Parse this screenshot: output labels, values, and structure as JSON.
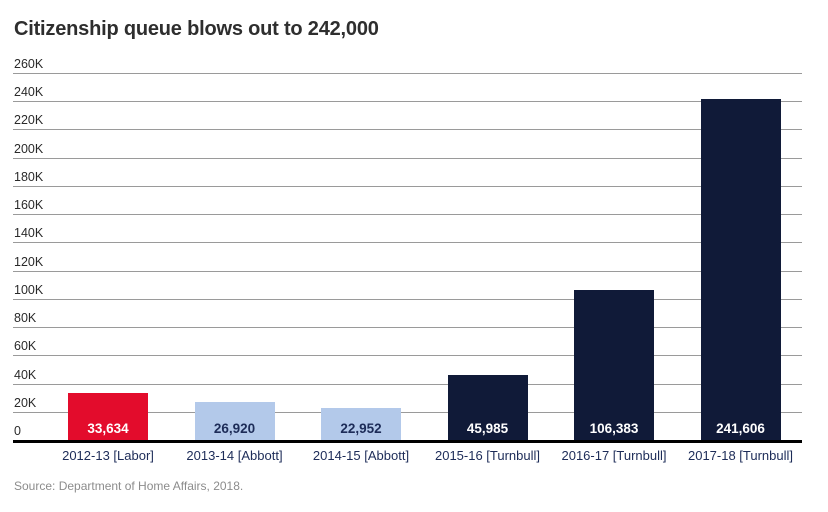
{
  "chart_data": {
    "type": "bar",
    "title": "Citizenship queue blows out to 242,000",
    "source": "Source: Department of Home Affairs, 2018.",
    "categories": [
      "2012-13 [Labor]",
      "2013-14 [Abbott]",
      "2014-15 [Abbott]",
      "2015-16 [Turnbull]",
      "2016-17 [Turnbull]",
      "2017-18 [Turnbull]"
    ],
    "values": [
      33634,
      26920,
      22952,
      45985,
      106383,
      241606
    ],
    "value_labels": [
      "33,634",
      "26,920",
      "22,952",
      "45,985",
      "106,383",
      "241,606"
    ],
    "bar_colors": [
      "#e30c2c",
      "#b3c9ea",
      "#b3c9ea",
      "#101a38",
      "#101a38",
      "#101a38"
    ],
    "value_label_colors": [
      "#ffffff",
      "#1d2c58",
      "#1d2c58",
      "#ffffff",
      "#ffffff",
      "#ffffff"
    ],
    "xlabel": "",
    "ylabel": "",
    "ylim": [
      0,
      260000
    ],
    "ytick_step": 20000,
    "ytick_labels": [
      "0",
      "20K",
      "40K",
      "60K",
      "80K",
      "100K",
      "120K",
      "140K",
      "160K",
      "180K",
      "200K",
      "220K",
      "240K",
      "260K"
    ],
    "grid": true,
    "legend": false,
    "colors": {
      "grid": "#9a9a9a",
      "axis": "#000000",
      "title": "#2e2e2e",
      "tick_text": "#2a2a2a",
      "category_text": "#1d2c58",
      "source_text": "#8c8c8c",
      "background": "#ffffff"
    }
  }
}
